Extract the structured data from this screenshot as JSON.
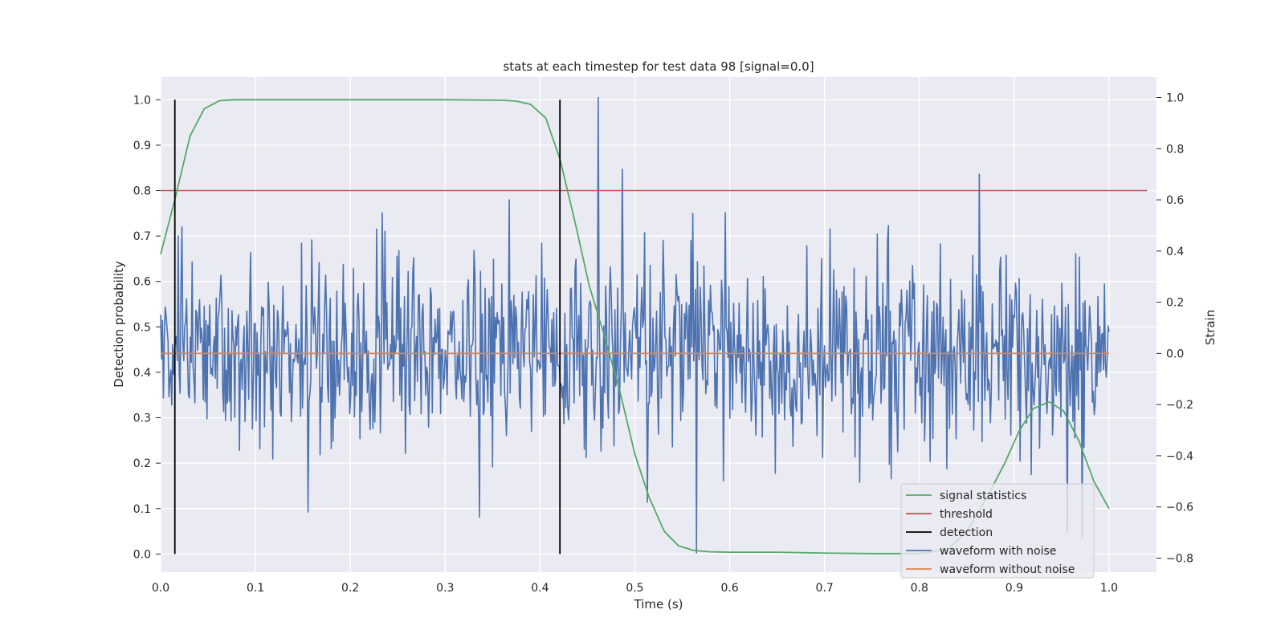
{
  "chart_data": {
    "type": "line",
    "title": "stats at each timestep for test data 98 [signal=0.0]",
    "xlabel": "Time (s)",
    "ylabel": "Detection probability",
    "y2label": "Strain",
    "xlim": [
      0.0,
      1.05
    ],
    "ylim": [
      -0.04,
      1.05
    ],
    "y2lim": [
      -0.855,
      1.08
    ],
    "xticks": [
      "0.0",
      "0.1",
      "0.2",
      "0.3",
      "0.4",
      "0.5",
      "0.6",
      "0.7",
      "0.8",
      "0.9",
      "1.0"
    ],
    "yticks": [
      "0.0",
      "0.1",
      "0.2",
      "0.3",
      "0.4",
      "0.5",
      "0.6",
      "0.7",
      "0.8",
      "0.9",
      "1.0"
    ],
    "y2ticks": [
      "−0.8",
      "−0.6",
      "−0.4",
      "−0.2",
      "0.0",
      "0.2",
      "0.4",
      "0.6",
      "0.8",
      "1.0"
    ],
    "grid": true,
    "legend_position": "lower-right",
    "series": [
      {
        "name": "signal statistics",
        "color": "#55a868",
        "axis": "left",
        "x": [
          0.0,
          0.015,
          0.031,
          0.046,
          0.062,
          0.078,
          0.1,
          0.2,
          0.3,
          0.36,
          0.375,
          0.39,
          0.406,
          0.421,
          0.437,
          0.452,
          0.468,
          0.484,
          0.5,
          0.515,
          0.531,
          0.546,
          0.562,
          0.578,
          0.6,
          0.65,
          0.7,
          0.75,
          0.8,
          0.83,
          0.85,
          0.87,
          0.89,
          0.905,
          0.92,
          0.937,
          0.952,
          0.968,
          0.984,
          1.0
        ],
        "y": [
          0.66,
          0.78,
          0.92,
          0.98,
          0.998,
          1.0,
          1.0,
          1.0,
          1.0,
          0.999,
          0.997,
          0.99,
          0.96,
          0.87,
          0.73,
          0.59,
          0.48,
          0.36,
          0.22,
          0.125,
          0.05,
          0.018,
          0.008,
          0.005,
          0.004,
          0.004,
          0.002,
          0.001,
          0.001,
          0.01,
          0.05,
          0.12,
          0.2,
          0.27,
          0.32,
          0.335,
          0.315,
          0.25,
          0.16,
          0.1
        ]
      },
      {
        "name": "threshold",
        "color": "#c44e52",
        "axis": "left",
        "x": [
          0.0,
          1.04
        ],
        "y": [
          0.8,
          0.8
        ]
      },
      {
        "name": "detection",
        "color": "#000000",
        "axis": "left",
        "type": "vlines",
        "x": [
          0.015,
          0.421
        ],
        "y": [
          0.0,
          1.0
        ]
      },
      {
        "name": "waveform with noise",
        "color": "#4c72b0",
        "axis": "right",
        "noise_std": 0.19,
        "peaks": [
          {
            "x": 0.461,
            "y": 1.0
          },
          {
            "x": 0.487,
            "y": 0.72
          },
          {
            "x": 0.863,
            "y": 0.7
          },
          {
            "x": 0.368,
            "y": 0.6
          },
          {
            "x": 0.565,
            "y": -0.78
          },
          {
            "x": 0.956,
            "y": -0.7
          },
          {
            "x": 0.972,
            "y": -0.72
          },
          {
            "x": 0.336,
            "y": -0.64
          },
          {
            "x": 0.155,
            "y": -0.62
          }
        ]
      },
      {
        "name": "waveform without noise",
        "color": "#dd8452",
        "axis": "right",
        "x": [
          0.0,
          1.0
        ],
        "y": [
          0.0,
          0.0
        ]
      }
    ]
  }
}
